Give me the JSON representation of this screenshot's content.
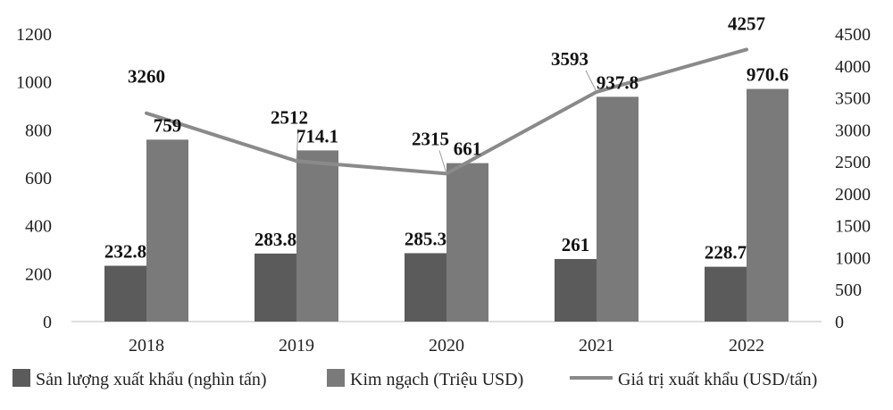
{
  "chart_data": {
    "type": "bar",
    "categories": [
      "2018",
      "2019",
      "2020",
      "2021",
      "2022"
    ],
    "series": [
      {
        "name": "Sản lượng xuất khẩu (nghìn tấn)",
        "kind": "bar",
        "axis": "left",
        "values": [
          232.8,
          283.8,
          285.3,
          261,
          228.7
        ],
        "labels": [
          "232.8",
          "283.8",
          "285.3",
          "261",
          "228.7"
        ]
      },
      {
        "name": "Kim ngạch (Triệu USD)",
        "kind": "bar",
        "axis": "left",
        "values": [
          759,
          714.1,
          661,
          937.8,
          970.6
        ],
        "labels": [
          "759",
          "714.1",
          "661",
          "937.8",
          "970.6"
        ]
      },
      {
        "name": "Giá trị xuất khẩu (USD/tấn)",
        "kind": "line",
        "axis": "right",
        "values": [
          3260,
          2512,
          2315,
          3593,
          4257
        ],
        "labels": [
          "3260",
          "2512",
          "2315",
          "3593",
          "4257"
        ]
      }
    ],
    "left_axis": {
      "ylim": [
        0,
        1200
      ],
      "ticks": [
        "0",
        "200",
        "400",
        "600",
        "800",
        "1000",
        "1200"
      ]
    },
    "right_axis": {
      "ylim": [
        0,
        4500
      ],
      "ticks": [
        "0",
        "500",
        "1000",
        "1500",
        "2000",
        "2500",
        "3000",
        "3500",
        "4000",
        "4500"
      ]
    },
    "grid": false,
    "legend_position": "bottom",
    "colors": {
      "bar1": "#5b5b5b",
      "bar2": "#7a7a7a",
      "line": "#8a8a8a",
      "text": "#111111"
    }
  }
}
